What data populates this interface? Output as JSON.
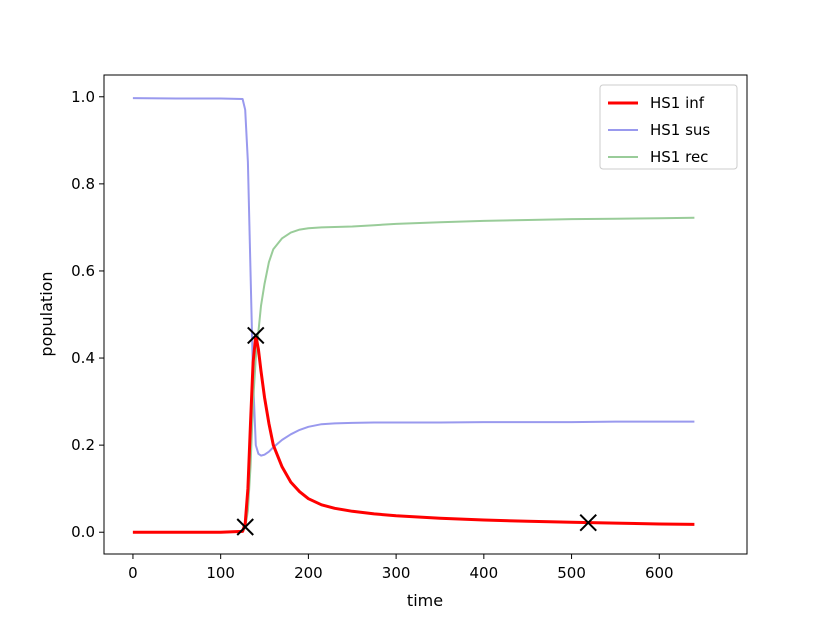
{
  "chart_data": {
    "type": "line",
    "title": "",
    "xlabel": "time",
    "ylabel": "population",
    "xlim": [
      -33,
      700
    ],
    "ylim": [
      -0.05,
      1.05
    ],
    "xticks": [
      0,
      100,
      200,
      300,
      400,
      500,
      600
    ],
    "yticks": [
      0.0,
      0.2,
      0.4,
      0.6,
      0.8,
      1.0
    ],
    "grid": false,
    "legend_position": "top-right",
    "series": [
      {
        "name": "HS1 inf",
        "color": "#ff0000",
        "x": [
          0,
          50,
          100,
          125,
          128,
          131,
          134,
          137,
          140,
          143,
          146,
          150,
          155,
          160,
          170,
          180,
          190,
          200,
          215,
          230,
          250,
          275,
          300,
          350,
          400,
          450,
          500,
          550,
          600,
          640
        ],
        "y": [
          0.0,
          0.0,
          0.0,
          0.002,
          0.02,
          0.1,
          0.25,
          0.39,
          0.452,
          0.42,
          0.37,
          0.31,
          0.25,
          0.2,
          0.15,
          0.115,
          0.093,
          0.077,
          0.063,
          0.055,
          0.048,
          0.042,
          0.038,
          0.032,
          0.028,
          0.025,
          0.023,
          0.021,
          0.019,
          0.018
        ]
      },
      {
        "name": "HS1 sus",
        "color": "#9999ee",
        "x": [
          0,
          50,
          100,
          125,
          128,
          131,
          134,
          137,
          140,
          143,
          146,
          150,
          155,
          160,
          170,
          180,
          190,
          200,
          215,
          230,
          250,
          275,
          300,
          350,
          400,
          450,
          500,
          550,
          600,
          640
        ],
        "y": [
          0.997,
          0.996,
          0.996,
          0.995,
          0.97,
          0.85,
          0.6,
          0.35,
          0.2,
          0.18,
          0.176,
          0.178,
          0.185,
          0.195,
          0.212,
          0.225,
          0.235,
          0.242,
          0.248,
          0.25,
          0.251,
          0.252,
          0.252,
          0.252,
          0.253,
          0.253,
          0.253,
          0.254,
          0.254,
          0.254
        ]
      },
      {
        "name": "HS1 rec",
        "color": "#99cc99",
        "x": [
          0,
          50,
          100,
          125,
          128,
          131,
          134,
          137,
          140,
          143,
          146,
          150,
          155,
          160,
          170,
          180,
          190,
          200,
          215,
          230,
          250,
          275,
          300,
          350,
          400,
          450,
          500,
          550,
          600,
          640
        ],
        "y": [
          0.0,
          0.0,
          0.0,
          0.002,
          0.01,
          0.05,
          0.15,
          0.3,
          0.4,
          0.46,
          0.52,
          0.57,
          0.62,
          0.65,
          0.675,
          0.688,
          0.695,
          0.698,
          0.7,
          0.701,
          0.702,
          0.705,
          0.708,
          0.712,
          0.715,
          0.717,
          0.719,
          0.72,
          0.721,
          0.722
        ]
      }
    ],
    "markers": {
      "symbol": "x",
      "color": "#000000",
      "points": [
        {
          "x": 128,
          "y": 0.012
        },
        {
          "x": 140,
          "y": 0.452
        },
        {
          "x": 519,
          "y": 0.022
        }
      ]
    }
  }
}
